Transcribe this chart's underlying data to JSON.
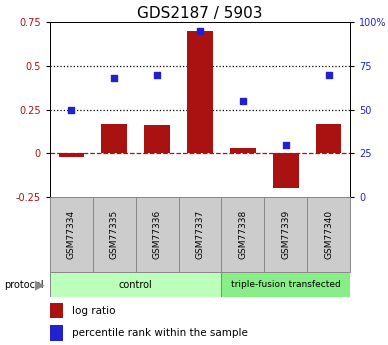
{
  "title": "GDS2187 / 5903",
  "samples": [
    "GSM77334",
    "GSM77335",
    "GSM77336",
    "GSM77337",
    "GSM77338",
    "GSM77339",
    "GSM77340"
  ],
  "log_ratio": [
    -0.02,
    0.17,
    0.16,
    0.7,
    0.03,
    -0.2,
    0.17
  ],
  "percentile_rank": [
    50,
    68,
    70,
    95,
    55,
    30,
    70
  ],
  "bar_color": "#AA1111",
  "dot_color": "#2222CC",
  "ylim_left": [
    -0.25,
    0.75
  ],
  "ylim_right": [
    0,
    100
  ],
  "hline_zero": 0.0,
  "hline_025": 0.25,
  "hline_050": 0.5,
  "n_control": 4,
  "control_label": "control",
  "treat_label": "triple-fusion transfected",
  "protocol_label": "protocol",
  "legend_bar": "log ratio",
  "legend_dot": "percentile rank within the sample",
  "control_color": "#BBFFBB",
  "treat_color": "#88EE88",
  "sample_box_color": "#CCCCCC",
  "title_fontsize": 11,
  "tick_fontsize": 7,
  "sample_fontsize": 6.5,
  "legend_fontsize": 7.5,
  "proto_fontsize": 7
}
